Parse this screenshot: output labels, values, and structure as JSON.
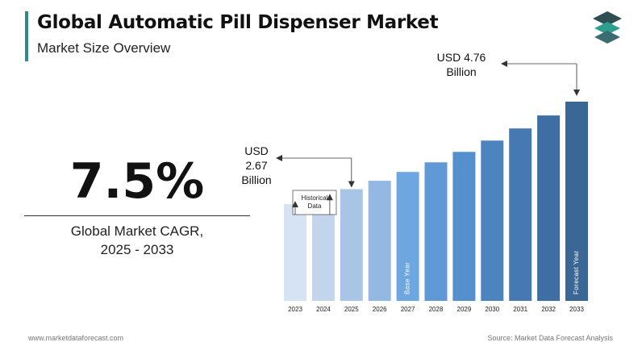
{
  "header": {
    "title": "Global Automatic Pill Dispenser Market",
    "subtitle": "Market Size Overview",
    "accent_color": "#2e8a8a"
  },
  "logo": {
    "icon": "stacked-layers-icon",
    "colors": [
      "#2f4f55",
      "#2e9f8f",
      "#3a6c72"
    ]
  },
  "cagr": {
    "value": "7.5%",
    "label_line1": "Global Market CAGR,",
    "label_line2": "2025 - 2033"
  },
  "chart_data": {
    "type": "bar",
    "categories": [
      "2023",
      "2024",
      "2025",
      "2026",
      "2027",
      "2028",
      "2029",
      "2030",
      "2031",
      "2032",
      "2033"
    ],
    "values": [
      2.31,
      2.48,
      2.67,
      2.87,
      3.08,
      3.31,
      3.56,
      3.83,
      4.12,
      4.43,
      4.76
    ],
    "colors": [
      "#d6e3f3",
      "#c2d5ec",
      "#a9c5e6",
      "#93b8e3",
      "#6ea6e0",
      "#5f9ad6",
      "#5690cc",
      "#4b84bf",
      "#4679b2",
      "#3e6ea3",
      "#3a6796"
    ],
    "bar_labels": {
      "2027": "Base Year",
      "2033": "Forecast Year"
    },
    "annotations": [
      {
        "text_lines": [
          "USD",
          "2.67",
          "Billion"
        ],
        "target": "2025"
      },
      {
        "text_lines": [
          "USD 4.76",
          "Billion"
        ],
        "target": "2033"
      }
    ],
    "historical_label": [
      "Historical",
      "Data"
    ],
    "historical_targets": [
      "2023",
      "2024"
    ],
    "unit": "USD Billion"
  },
  "footer": {
    "website": "www.marketdataforecast.com",
    "source": "Source: Market Data Forecast Analysis"
  }
}
